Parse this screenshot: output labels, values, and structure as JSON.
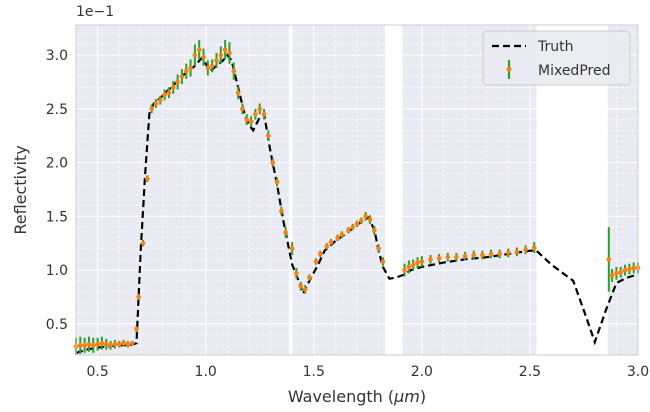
{
  "chart_data": {
    "type": "line",
    "xlabel_prefix": "Wavelength (",
    "xlabel_unit": "μm",
    "xlabel_suffix": ")",
    "ylabel": "Reflectivity",
    "y_offset_label": "1e−1",
    "xlim": [
      0.4,
      3.0
    ],
    "ylim": [
      0.21,
      3.28
    ],
    "x_ticks": [
      0.5,
      1.0,
      1.5,
      2.0,
      2.5,
      3.0
    ],
    "x_tick_labels": [
      "0.5",
      "1.0",
      "1.5",
      "2.0",
      "2.5",
      "3.0"
    ],
    "y_ticks": [
      0.5,
      1.0,
      1.5,
      2.0,
      2.5,
      3.0
    ],
    "y_tick_labels": [
      "0.5",
      "1.0",
      "1.5",
      "2.0",
      "2.5",
      "3.0"
    ],
    "grid": true,
    "legend_position": "top-right",
    "masked_bands": [
      [
        1.385,
        1.4
      ],
      [
        1.83,
        1.91
      ],
      [
        2.53,
        2.86
      ]
    ],
    "series": [
      {
        "name": "Truth",
        "style": "dashed",
        "color": "#000000",
        "points": [
          [
            0.4,
            0.23
          ],
          [
            0.45,
            0.26
          ],
          [
            0.5,
            0.28
          ],
          [
            0.55,
            0.29
          ],
          [
            0.6,
            0.3
          ],
          [
            0.65,
            0.3
          ],
          [
            0.68,
            0.32
          ],
          [
            0.7,
            1.2
          ],
          [
            0.72,
            1.9
          ],
          [
            0.74,
            2.47
          ],
          [
            0.76,
            2.55
          ],
          [
            0.8,
            2.62
          ],
          [
            0.85,
            2.72
          ],
          [
            0.9,
            2.82
          ],
          [
            0.95,
            2.9
          ],
          [
            0.98,
            2.97
          ],
          [
            1.0,
            2.92
          ],
          [
            1.02,
            2.85
          ],
          [
            1.05,
            2.9
          ],
          [
            1.08,
            2.95
          ],
          [
            1.1,
            3.0
          ],
          [
            1.12,
            2.95
          ],
          [
            1.15,
            2.7
          ],
          [
            1.18,
            2.45
          ],
          [
            1.2,
            2.35
          ],
          [
            1.22,
            2.3
          ],
          [
            1.25,
            2.42
          ],
          [
            1.27,
            2.45
          ],
          [
            1.3,
            2.1
          ],
          [
            1.33,
            1.8
          ],
          [
            1.36,
            1.45
          ],
          [
            1.385,
            1.2
          ],
          [
            1.4,
            1.05
          ],
          [
            1.43,
            0.9
          ],
          [
            1.45,
            0.78
          ],
          [
            1.48,
            0.9
          ],
          [
            1.52,
            1.05
          ],
          [
            1.55,
            1.18
          ],
          [
            1.6,
            1.27
          ],
          [
            1.65,
            1.34
          ],
          [
            1.7,
            1.42
          ],
          [
            1.75,
            1.49
          ],
          [
            1.78,
            1.38
          ],
          [
            1.8,
            1.18
          ],
          [
            1.82,
            1.03
          ],
          [
            1.85,
            0.92
          ],
          [
            1.88,
            0.93
          ],
          [
            1.92,
            0.96
          ],
          [
            1.95,
            1.0
          ],
          [
            2.0,
            1.03
          ],
          [
            2.1,
            1.07
          ],
          [
            2.2,
            1.1
          ],
          [
            2.3,
            1.12
          ],
          [
            2.4,
            1.15
          ],
          [
            2.5,
            1.18
          ],
          [
            2.53,
            1.18
          ],
          [
            2.6,
            1.05
          ],
          [
            2.7,
            0.9
          ],
          [
            2.75,
            0.62
          ],
          [
            2.8,
            0.33
          ],
          [
            2.85,
            0.62
          ],
          [
            2.9,
            0.88
          ],
          [
            2.95,
            0.93
          ],
          [
            3.0,
            0.96
          ]
        ]
      },
      {
        "name": "MixedPred",
        "style": "points-with-error-bars",
        "point_color": "#ff7f0e",
        "errorbar_color": "#2ca02c",
        "points": [
          [
            0.4,
            0.29,
            0.08
          ],
          [
            0.42,
            0.3,
            0.08
          ],
          [
            0.44,
            0.3,
            0.07
          ],
          [
            0.46,
            0.31,
            0.07
          ],
          [
            0.48,
            0.3,
            0.07
          ],
          [
            0.5,
            0.31,
            0.06
          ],
          [
            0.52,
            0.32,
            0.06
          ],
          [
            0.54,
            0.31,
            0.05
          ],
          [
            0.56,
            0.3,
            0.04
          ],
          [
            0.58,
            0.31,
            0.04
          ],
          [
            0.6,
            0.31,
            0.03
          ],
          [
            0.62,
            0.32,
            0.03
          ],
          [
            0.64,
            0.31,
            0.03
          ],
          [
            0.66,
            0.32,
            0.02
          ],
          [
            0.68,
            0.45,
            0.03
          ],
          [
            0.69,
            0.75,
            0.03
          ],
          [
            0.71,
            1.25,
            0.03
          ],
          [
            0.73,
            1.85,
            0.03
          ],
          [
            0.75,
            2.5,
            0.04
          ],
          [
            0.77,
            2.55,
            0.04
          ],
          [
            0.79,
            2.58,
            0.04
          ],
          [
            0.81,
            2.63,
            0.05
          ],
          [
            0.83,
            2.65,
            0.05
          ],
          [
            0.85,
            2.7,
            0.06
          ],
          [
            0.87,
            2.75,
            0.07
          ],
          [
            0.89,
            2.8,
            0.07
          ],
          [
            0.91,
            2.85,
            0.07
          ],
          [
            0.93,
            2.88,
            0.08
          ],
          [
            0.95,
            3.0,
            0.1
          ],
          [
            0.97,
            3.05,
            0.09
          ],
          [
            0.99,
            2.98,
            0.08
          ],
          [
            1.01,
            2.88,
            0.07
          ],
          [
            1.03,
            2.9,
            0.06
          ],
          [
            1.05,
            2.95,
            0.07
          ],
          [
            1.07,
            3.0,
            0.08
          ],
          [
            1.09,
            3.05,
            0.09
          ],
          [
            1.11,
            3.02,
            0.1
          ],
          [
            1.13,
            2.85,
            0.08
          ],
          [
            1.15,
            2.65,
            0.06
          ],
          [
            1.17,
            2.5,
            0.05
          ],
          [
            1.19,
            2.4,
            0.05
          ],
          [
            1.21,
            2.38,
            0.05
          ],
          [
            1.23,
            2.45,
            0.05
          ],
          [
            1.25,
            2.5,
            0.05
          ],
          [
            1.27,
            2.45,
            0.05
          ],
          [
            1.29,
            2.25,
            0.05
          ],
          [
            1.31,
            2.0,
            0.04
          ],
          [
            1.33,
            1.82,
            0.04
          ],
          [
            1.35,
            1.55,
            0.04
          ],
          [
            1.37,
            1.35,
            0.05
          ],
          [
            1.4,
            1.2,
            0.06
          ],
          [
            1.42,
            0.97,
            0.05
          ],
          [
            1.44,
            0.85,
            0.04
          ],
          [
            1.46,
            0.82,
            0.04
          ],
          [
            1.48,
            0.93,
            0.03
          ],
          [
            1.51,
            1.08,
            0.03
          ],
          [
            1.53,
            1.15,
            0.03
          ],
          [
            1.56,
            1.22,
            0.03
          ],
          [
            1.58,
            1.26,
            0.03
          ],
          [
            1.61,
            1.3,
            0.03
          ],
          [
            1.63,
            1.33,
            0.03
          ],
          [
            1.66,
            1.37,
            0.03
          ],
          [
            1.68,
            1.4,
            0.03
          ],
          [
            1.7,
            1.43,
            0.03
          ],
          [
            1.72,
            1.46,
            0.03
          ],
          [
            1.74,
            1.5,
            0.04
          ],
          [
            1.76,
            1.47,
            0.04
          ],
          [
            1.78,
            1.37,
            0.04
          ],
          [
            1.8,
            1.2,
            0.04
          ],
          [
            1.82,
            1.08,
            0.04
          ],
          [
            1.92,
            1.0,
            0.06
          ],
          [
            1.94,
            1.03,
            0.06
          ],
          [
            1.96,
            1.05,
            0.05
          ],
          [
            1.98,
            1.07,
            0.05
          ],
          [
            2.0,
            1.08,
            0.05
          ],
          [
            2.04,
            1.1,
            0.04
          ],
          [
            2.08,
            1.11,
            0.04
          ],
          [
            2.12,
            1.12,
            0.04
          ],
          [
            2.16,
            1.12,
            0.04
          ],
          [
            2.2,
            1.13,
            0.04
          ],
          [
            2.24,
            1.14,
            0.04
          ],
          [
            2.28,
            1.14,
            0.04
          ],
          [
            2.32,
            1.15,
            0.04
          ],
          [
            2.36,
            1.15,
            0.04
          ],
          [
            2.4,
            1.16,
            0.04
          ],
          [
            2.44,
            1.17,
            0.04
          ],
          [
            2.48,
            1.19,
            0.04
          ],
          [
            2.52,
            1.21,
            0.05
          ],
          [
            2.865,
            1.1,
            0.3
          ],
          [
            2.88,
            0.95,
            0.06
          ],
          [
            2.9,
            0.97,
            0.06
          ],
          [
            2.92,
            0.98,
            0.05
          ],
          [
            2.94,
            1.0,
            0.05
          ],
          [
            2.96,
            1.01,
            0.05
          ],
          [
            2.98,
            1.02,
            0.05
          ],
          [
            3.0,
            1.02,
            0.05
          ]
        ]
      }
    ]
  }
}
